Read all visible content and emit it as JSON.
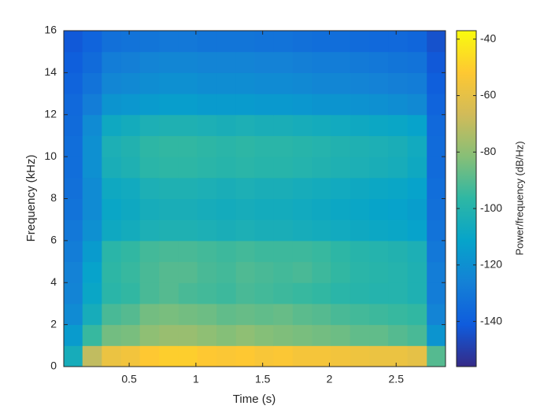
{
  "chart_data": {
    "type": "heatmap",
    "xlabel": "Time (s)",
    "ylabel": "Frequency (kHz)",
    "colorbar_label": "Power/frequency (dB/Hz)",
    "x": [
      0.08,
      0.22,
      0.37,
      0.51,
      0.65,
      0.8,
      0.94,
      1.08,
      1.23,
      1.37,
      1.51,
      1.65,
      1.8,
      1.94,
      2.08,
      2.23,
      2.37,
      2.51,
      2.66,
      2.8
    ],
    "y": [
      0.5,
      1.5,
      2.5,
      3.5,
      4.5,
      5.5,
      6.5,
      7.5,
      8.5,
      9.5,
      10.5,
      11.5,
      12.5,
      13.5,
      14.5,
      15.5
    ],
    "z": [
      [
        -105,
        -70,
        -58,
        -56,
        -52,
        -50,
        -50,
        -52,
        -53,
        -52,
        -54,
        -53,
        -55,
        -55,
        -56,
        -57,
        -58,
        -58,
        -60,
        -90
      ],
      [
        -115,
        -95,
        -85,
        -84,
        -80,
        -78,
        -78,
        -80,
        -82,
        -80,
        -82,
        -83,
        -84,
        -85,
        -86,
        -88,
        -88,
        -90,
        -92,
        -118
      ],
      [
        -122,
        -105,
        -92,
        -90,
        -85,
        -84,
        -85,
        -86,
        -88,
        -87,
        -88,
        -87,
        -89,
        -90,
        -92,
        -93,
        -94,
        -95,
        -96,
        -125
      ],
      [
        -125,
        -110,
        -98,
        -96,
        -92,
        -90,
        -92,
        -93,
        -94,
        -92,
        -93,
        -94,
        -95,
        -96,
        -98,
        -99,
        -100,
        -100,
        -102,
        -128
      ],
      [
        -126,
        -112,
        -97,
        -95,
        -92,
        -90,
        -90,
        -92,
        -93,
        -91,
        -92,
        -93,
        -92,
        -94,
        -96,
        -98,
        -99,
        -100,
        -102,
        -128
      ],
      [
        -128,
        -115,
        -98,
        -96,
        -93,
        -92,
        -92,
        -93,
        -94,
        -93,
        -94,
        -94,
        -94,
        -95,
        -97,
        -99,
        -100,
        -101,
        -103,
        -130
      ],
      [
        -130,
        -120,
        -108,
        -106,
        -103,
        -102,
        -102,
        -103,
        -104,
        -103,
        -104,
        -104,
        -105,
        -106,
        -107,
        -108,
        -109,
        -110,
        -112,
        -132
      ],
      [
        -132,
        -122,
        -110,
        -108,
        -105,
        -104,
        -104,
        -105,
        -106,
        -105,
        -106,
        -106,
        -107,
        -108,
        -109,
        -110,
        -111,
        -112,
        -114,
        -133
      ],
      [
        -133,
        -122,
        -108,
        -107,
        -103,
        -102,
        -102,
        -103,
        -104,
        -103,
        -104,
        -104,
        -105,
        -106,
        -107,
        -108,
        -109,
        -110,
        -112,
        -134
      ],
      [
        -134,
        -120,
        -104,
        -102,
        -98,
        -97,
        -97,
        -98,
        -99,
        -98,
        -99,
        -99,
        -100,
        -101,
        -102,
        -103,
        -104,
        -105,
        -108,
        -135
      ],
      [
        -134,
        -120,
        -103,
        -101,
        -97,
        -96,
        -96,
        -97,
        -98,
        -97,
        -98,
        -98,
        -99,
        -100,
        -101,
        -102,
        -103,
        -104,
        -107,
        -135
      ],
      [
        -135,
        -122,
        -108,
        -106,
        -103,
        -102,
        -102,
        -103,
        -104,
        -103,
        -104,
        -104,
        -105,
        -106,
        -107,
        -108,
        -109,
        -110,
        -112,
        -136
      ],
      [
        -136,
        -128,
        -118,
        -117,
        -115,
        -114,
        -114,
        -115,
        -115,
        -115,
        -116,
        -116,
        -117,
        -118,
        -118,
        -119,
        -120,
        -121,
        -123,
        -138
      ],
      [
        -138,
        -132,
        -124,
        -123,
        -121,
        -120,
        -120,
        -121,
        -121,
        -121,
        -122,
        -122,
        -123,
        -124,
        -124,
        -125,
        -126,
        -127,
        -128,
        -140
      ],
      [
        -140,
        -135,
        -128,
        -127,
        -125,
        -124,
        -124,
        -125,
        -125,
        -125,
        -126,
        -126,
        -127,
        -128,
        -128,
        -129,
        -130,
        -131,
        -132,
        -142
      ],
      [
        -142,
        -138,
        -133,
        -132,
        -131,
        -130,
        -130,
        -131,
        -131,
        -131,
        -132,
        -132,
        -133,
        -134,
        -134,
        -135,
        -136,
        -136,
        -137,
        -144
      ]
    ],
    "xlim": [
      0.01,
      2.87
    ],
    "xticks": [
      0.5,
      1,
      1.5,
      2,
      2.5
    ],
    "ylim": [
      0,
      16
    ],
    "yticks": [
      0,
      2,
      4,
      6,
      8,
      10,
      12,
      14,
      16
    ],
    "clim": [
      -156,
      -37
    ],
    "cticks": [
      -140,
      -120,
      -100,
      -80,
      -60,
      -40
    ],
    "colormap": [
      "#352a87",
      "#0f5cdd",
      "#1481d6",
      "#06a4ca",
      "#2eb7a4",
      "#87bf77",
      "#d1bb59",
      "#fec832",
      "#f9fb0e"
    ]
  }
}
